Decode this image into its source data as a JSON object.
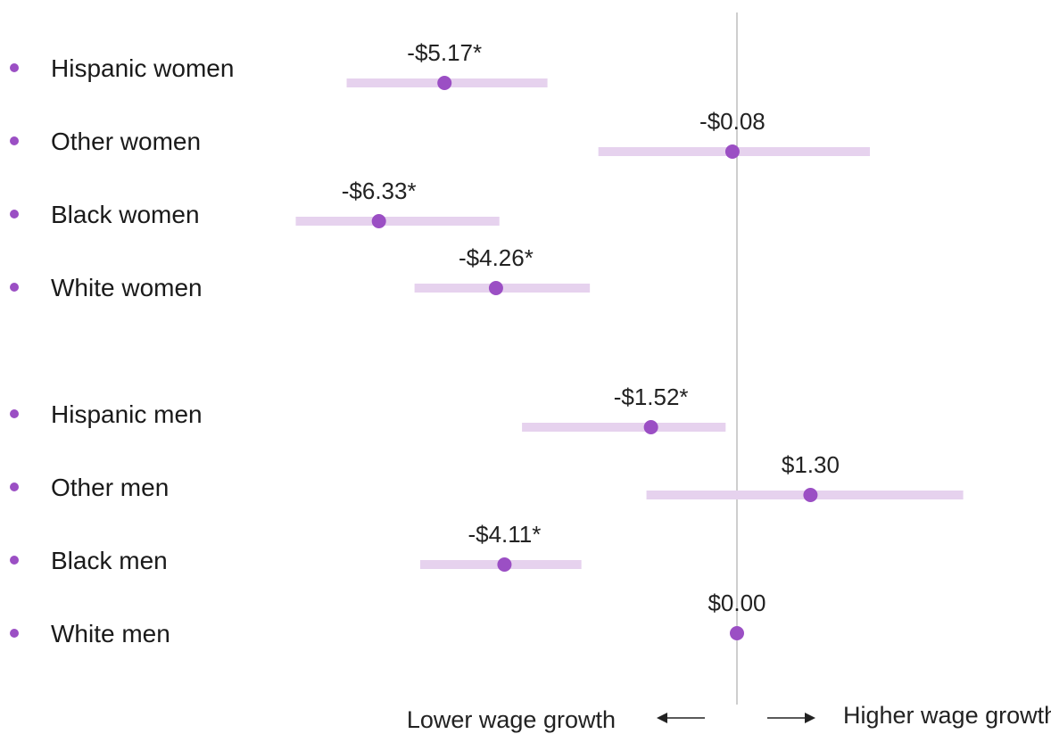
{
  "chart_data": {
    "type": "forest",
    "title": "",
    "xlabel": "",
    "ylabel": "",
    "direction_labels": {
      "left": "Lower wage growth",
      "right": "Higher wage growth"
    },
    "reference_value": 0,
    "grid": false,
    "colors": {
      "point": "#9b4fc4",
      "interval": "#e6d2ee",
      "reference_line": "#bdbdbd",
      "bullet": "#9b4fc4"
    },
    "rows": [
      {
        "label": "Hispanic women",
        "value": -5.17,
        "ci": [
          -6.9,
          -3.35
        ],
        "value_label": "-$5.17*",
        "group": 0
      },
      {
        "label": "Other women",
        "value": -0.08,
        "ci": [
          -2.45,
          2.35
        ],
        "value_label": "-$0.08",
        "group": 0
      },
      {
        "label": "Black women",
        "value": -6.33,
        "ci": [
          -7.8,
          -4.2
        ],
        "value_label": "-$6.33*",
        "group": 0
      },
      {
        "label": "White women",
        "value": -4.26,
        "ci": [
          -5.7,
          -2.6
        ],
        "value_label": "-$4.26*",
        "group": 0
      },
      {
        "label": "Hispanic men",
        "value": -1.52,
        "ci": [
          -3.8,
          -0.2
        ],
        "value_label": "-$1.52*",
        "group": 1
      },
      {
        "label": "Other men",
        "value": 1.3,
        "ci": [
          -1.6,
          4.0
        ],
        "value_label": "$1.30",
        "group": 1
      },
      {
        "label": "Black men",
        "value": -4.11,
        "ci": [
          -5.6,
          -2.75
        ],
        "value_label": "-$4.11*",
        "group": 1
      },
      {
        "label": "White men",
        "value": 0.0,
        "ci": null,
        "value_label": "$0.00",
        "group": 1
      }
    ]
  }
}
